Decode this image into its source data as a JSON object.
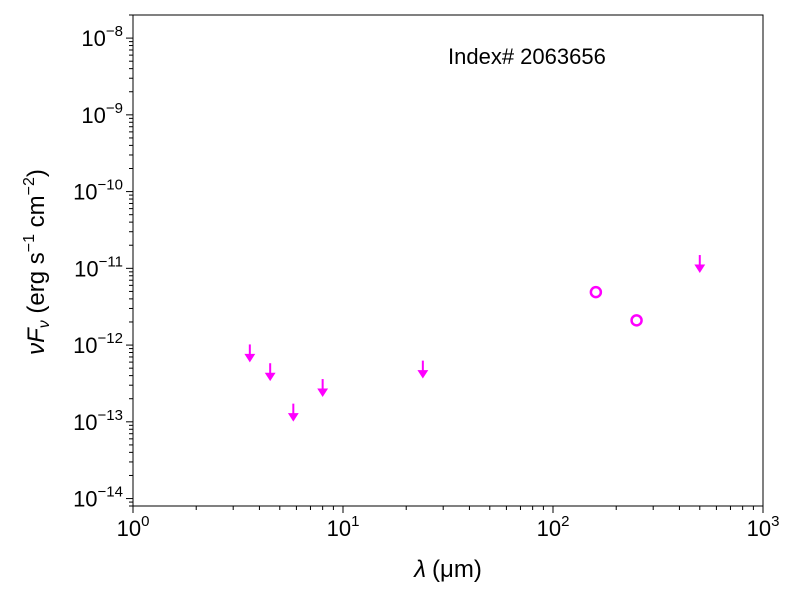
{
  "chart_data": {
    "type": "scatter",
    "xscale": "log",
    "yscale": "log",
    "xlim": [
      1,
      1000
    ],
    "ylim": [
      8e-15,
      2e-08
    ],
    "xlabel_symbol": "λ",
    "xlabel_unit": "(μm)",
    "ylabel_symbol": "νF",
    "ylabel_sub": "ν",
    "ylabel_unit_open": " (erg s",
    "ylabel_unit_mid": " cm",
    "ylabel_unit_close": ")",
    "ylabel_exp1": "−1",
    "ylabel_exp2": "−2",
    "annotation": "Index# 2063656",
    "xticks": [
      {
        "value": 1,
        "base": "10",
        "exp": "0"
      },
      {
        "value": 10,
        "base": "10",
        "exp": "1"
      },
      {
        "value": 100,
        "base": "10",
        "exp": "2"
      },
      {
        "value": 1000,
        "base": "10",
        "exp": "3"
      }
    ],
    "yticks": [
      {
        "value": 1e-14,
        "base": "10",
        "exp": "−14"
      },
      {
        "value": 1e-13,
        "base": "10",
        "exp": "−13"
      },
      {
        "value": 1e-12,
        "base": "10",
        "exp": "−12"
      },
      {
        "value": 1e-11,
        "base": "10",
        "exp": "−11"
      },
      {
        "value": 1e-10,
        "base": "10",
        "exp": "−10"
      },
      {
        "value": 1e-09,
        "base": "10",
        "exp": "−9"
      },
      {
        "value": 1e-08,
        "base": "10",
        "exp": "−8"
      }
    ],
    "series": [
      {
        "marker": "down-arrow",
        "color": "#ff00ff",
        "points": [
          {
            "x": 3.6,
            "y": 6.5e-13
          },
          {
            "x": 4.5,
            "y": 3.7e-13
          },
          {
            "x": 5.8,
            "y": 1.1e-13
          },
          {
            "x": 8.0,
            "y": 2.3e-13
          },
          {
            "x": 24,
            "y": 4e-13
          },
          {
            "x": 500,
            "y": 9.5e-12
          }
        ]
      },
      {
        "marker": "open-circle",
        "color": "#ff00ff",
        "points": [
          {
            "x": 160,
            "y": 4.9e-12
          },
          {
            "x": 250,
            "y": 2.1e-12
          }
        ]
      }
    ]
  }
}
